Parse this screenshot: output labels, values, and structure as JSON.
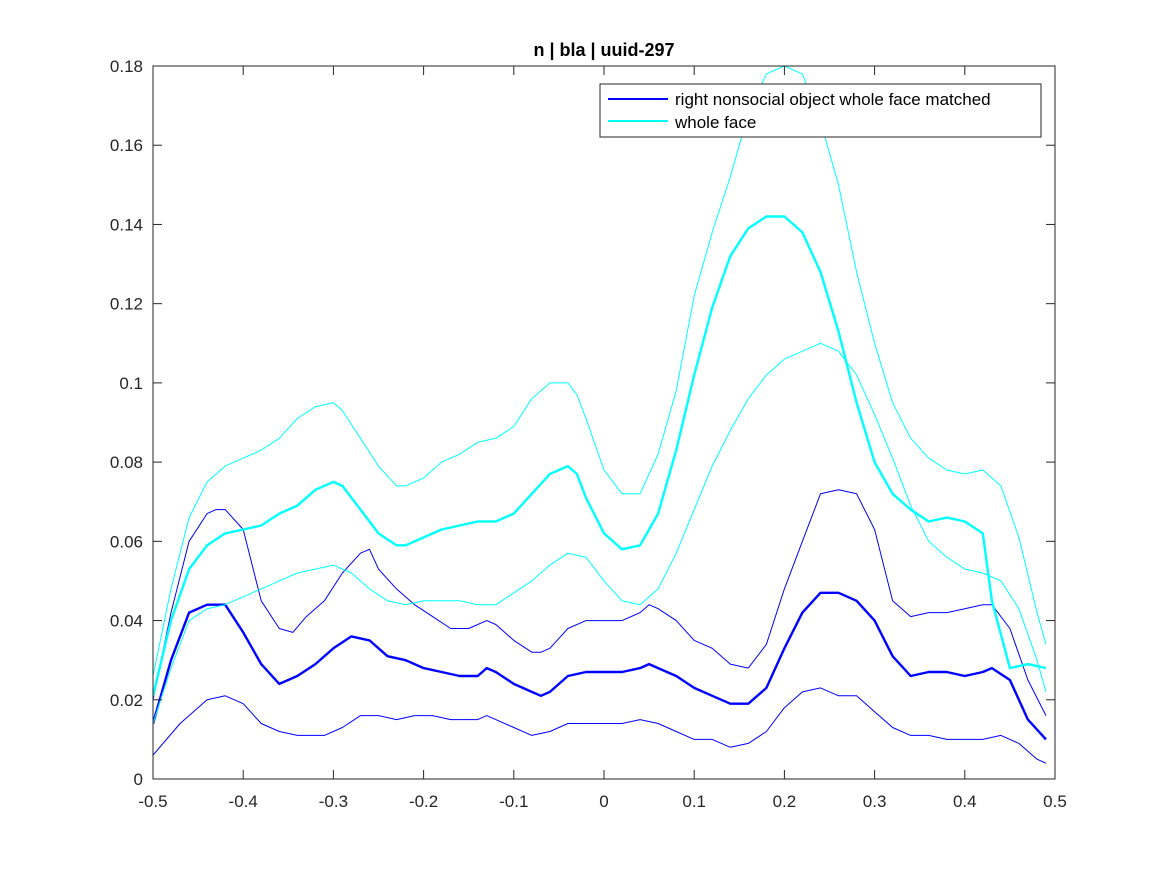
{
  "chart_data": {
    "type": "line",
    "title": "n | bla | uuid-297",
    "xlabel": "",
    "ylabel": "",
    "xlim": [
      -0.5,
      0.5
    ],
    "ylim": [
      0,
      0.18
    ],
    "xticks": [
      -0.5,
      -0.4,
      -0.3,
      -0.2,
      -0.1,
      0,
      0.1,
      0.2,
      0.3,
      0.4,
      0.5
    ],
    "xtick_labels": [
      "-0.5",
      "-0.4",
      "-0.3",
      "-0.2",
      "-0.1",
      "0",
      "0.1",
      "0.2",
      "0.3",
      "0.4",
      "0.5"
    ],
    "yticks": [
      0,
      0.02,
      0.04,
      0.06,
      0.08,
      0.1,
      0.12,
      0.14,
      0.16,
      0.18
    ],
    "ytick_labels": [
      "0",
      "0.02",
      "0.04",
      "0.06",
      "0.08",
      "0.1",
      "0.12",
      "0.14",
      "0.16",
      "0.18"
    ],
    "grid": false,
    "legend_position": "top-right",
    "series": [
      {
        "name": "right nonsocial object whole face matched",
        "color": "#0000ff",
        "role": "mean",
        "x": [
          -0.5,
          -0.48,
          -0.46,
          -0.44,
          -0.42,
          -0.4,
          -0.38,
          -0.36,
          -0.34,
          -0.32,
          -0.3,
          -0.28,
          -0.26,
          -0.24,
          -0.22,
          -0.2,
          -0.18,
          -0.16,
          -0.14,
          -0.13,
          -0.12,
          -0.1,
          -0.08,
          -0.07,
          -0.06,
          -0.04,
          -0.02,
          0,
          0.02,
          0.04,
          0.05,
          0.06,
          0.08,
          0.1,
          0.12,
          0.14,
          0.16,
          0.18,
          0.2,
          0.22,
          0.24,
          0.26,
          0.28,
          0.3,
          0.32,
          0.34,
          0.36,
          0.38,
          0.4,
          0.42,
          0.43,
          0.45,
          0.47,
          0.49
        ],
        "y": [
          0.014,
          0.03,
          0.042,
          0.044,
          0.044,
          0.037,
          0.029,
          0.024,
          0.026,
          0.029,
          0.033,
          0.036,
          0.035,
          0.031,
          0.03,
          0.028,
          0.027,
          0.026,
          0.026,
          0.028,
          0.027,
          0.024,
          0.022,
          0.021,
          0.022,
          0.026,
          0.027,
          0.027,
          0.027,
          0.028,
          0.029,
          0.028,
          0.026,
          0.023,
          0.021,
          0.019,
          0.019,
          0.023,
          0.033,
          0.042,
          0.047,
          0.047,
          0.045,
          0.04,
          0.031,
          0.026,
          0.027,
          0.027,
          0.026,
          0.027,
          0.028,
          0.025,
          0.015,
          0.01
        ]
      },
      {
        "name": "",
        "color": "#0000ff",
        "role": "upper",
        "x": [
          -0.5,
          -0.48,
          -0.46,
          -0.44,
          -0.43,
          -0.42,
          -0.4,
          -0.38,
          -0.36,
          -0.345,
          -0.33,
          -0.31,
          -0.29,
          -0.27,
          -0.26,
          -0.25,
          -0.23,
          -0.21,
          -0.19,
          -0.17,
          -0.15,
          -0.13,
          -0.12,
          -0.1,
          -0.08,
          -0.07,
          -0.06,
          -0.04,
          -0.02,
          0,
          0.02,
          0.04,
          0.05,
          0.06,
          0.08,
          0.1,
          0.12,
          0.14,
          0.16,
          0.18,
          0.2,
          0.22,
          0.24,
          0.26,
          0.28,
          0.3,
          0.32,
          0.34,
          0.36,
          0.38,
          0.4,
          0.42,
          0.43,
          0.45,
          0.47,
          0.49
        ],
        "y": [
          0.02,
          0.042,
          0.06,
          0.067,
          0.068,
          0.068,
          0.063,
          0.045,
          0.038,
          0.037,
          0.041,
          0.045,
          0.052,
          0.057,
          0.058,
          0.053,
          0.048,
          0.044,
          0.041,
          0.038,
          0.038,
          0.04,
          0.039,
          0.035,
          0.032,
          0.032,
          0.033,
          0.038,
          0.04,
          0.04,
          0.04,
          0.042,
          0.044,
          0.043,
          0.04,
          0.035,
          0.033,
          0.029,
          0.028,
          0.034,
          0.048,
          0.06,
          0.072,
          0.073,
          0.072,
          0.063,
          0.045,
          0.041,
          0.042,
          0.042,
          0.043,
          0.044,
          0.044,
          0.038,
          0.025,
          0.016
        ]
      },
      {
        "name": "",
        "color": "#0000ff",
        "role": "lower",
        "x": [
          -0.5,
          -0.47,
          -0.44,
          -0.42,
          -0.4,
          -0.38,
          -0.36,
          -0.34,
          -0.31,
          -0.29,
          -0.27,
          -0.25,
          -0.23,
          -0.21,
          -0.19,
          -0.17,
          -0.14,
          -0.13,
          -0.12,
          -0.1,
          -0.08,
          -0.06,
          -0.04,
          -0.02,
          0,
          0.02,
          0.04,
          0.06,
          0.08,
          0.1,
          0.12,
          0.14,
          0.16,
          0.18,
          0.2,
          0.22,
          0.24,
          0.26,
          0.28,
          0.3,
          0.32,
          0.34,
          0.36,
          0.38,
          0.4,
          0.42,
          0.44,
          0.46,
          0.48,
          0.49
        ],
        "y": [
          0.006,
          0.014,
          0.02,
          0.021,
          0.019,
          0.014,
          0.012,
          0.011,
          0.011,
          0.013,
          0.016,
          0.016,
          0.015,
          0.016,
          0.016,
          0.015,
          0.015,
          0.016,
          0.015,
          0.013,
          0.011,
          0.012,
          0.014,
          0.014,
          0.014,
          0.014,
          0.015,
          0.014,
          0.012,
          0.01,
          0.01,
          0.008,
          0.009,
          0.012,
          0.018,
          0.022,
          0.023,
          0.021,
          0.021,
          0.017,
          0.013,
          0.011,
          0.011,
          0.01,
          0.01,
          0.01,
          0.011,
          0.009,
          0.005,
          0.004
        ]
      },
      {
        "name": "whole face",
        "color": "#00ffff",
        "role": "mean",
        "x": [
          -0.5,
          -0.48,
          -0.46,
          -0.44,
          -0.42,
          -0.4,
          -0.38,
          -0.36,
          -0.34,
          -0.32,
          -0.3,
          -0.29,
          -0.27,
          -0.25,
          -0.23,
          -0.22,
          -0.2,
          -0.18,
          -0.16,
          -0.14,
          -0.12,
          -0.1,
          -0.08,
          -0.06,
          -0.04,
          -0.03,
          -0.02,
          0,
          0.02,
          0.04,
          0.06,
          0.08,
          0.1,
          0.12,
          0.14,
          0.16,
          0.18,
          0.2,
          0.22,
          0.24,
          0.26,
          0.28,
          0.3,
          0.32,
          0.34,
          0.36,
          0.38,
          0.4,
          0.42,
          0.43,
          0.45,
          0.47,
          0.49
        ],
        "y": [
          0.021,
          0.04,
          0.053,
          0.059,
          0.062,
          0.063,
          0.064,
          0.067,
          0.069,
          0.073,
          0.075,
          0.074,
          0.068,
          0.062,
          0.059,
          0.059,
          0.061,
          0.063,
          0.064,
          0.065,
          0.065,
          0.067,
          0.072,
          0.077,
          0.079,
          0.077,
          0.071,
          0.062,
          0.058,
          0.059,
          0.067,
          0.083,
          0.102,
          0.119,
          0.132,
          0.139,
          0.142,
          0.142,
          0.138,
          0.128,
          0.113,
          0.095,
          0.08,
          0.072,
          0.068,
          0.065,
          0.066,
          0.065,
          0.062,
          0.045,
          0.028,
          0.029,
          0.028
        ]
      },
      {
        "name": "",
        "color": "#00ffff",
        "role": "upper",
        "x": [
          -0.5,
          -0.48,
          -0.46,
          -0.44,
          -0.42,
          -0.4,
          -0.38,
          -0.36,
          -0.34,
          -0.32,
          -0.3,
          -0.29,
          -0.27,
          -0.25,
          -0.23,
          -0.22,
          -0.2,
          -0.18,
          -0.16,
          -0.14,
          -0.12,
          -0.1,
          -0.08,
          -0.06,
          -0.04,
          -0.03,
          -0.02,
          0,
          0.02,
          0.04,
          0.06,
          0.08,
          0.1,
          0.12,
          0.14,
          0.16,
          0.18,
          0.2,
          0.22,
          0.24,
          0.26,
          0.28,
          0.3,
          0.32,
          0.34,
          0.36,
          0.38,
          0.4,
          0.42,
          0.44,
          0.46,
          0.48,
          0.49
        ],
        "y": [
          0.026,
          0.048,
          0.066,
          0.075,
          0.079,
          0.081,
          0.083,
          0.086,
          0.091,
          0.094,
          0.095,
          0.093,
          0.086,
          0.079,
          0.074,
          0.074,
          0.076,
          0.08,
          0.082,
          0.085,
          0.086,
          0.089,
          0.096,
          0.1,
          0.1,
          0.097,
          0.091,
          0.078,
          0.072,
          0.072,
          0.082,
          0.098,
          0.122,
          0.138,
          0.152,
          0.168,
          0.178,
          0.18,
          0.178,
          0.166,
          0.15,
          0.128,
          0.11,
          0.095,
          0.086,
          0.081,
          0.078,
          0.077,
          0.078,
          0.074,
          0.061,
          0.042,
          0.034
        ]
      },
      {
        "name": "",
        "color": "#00ffff",
        "role": "lower",
        "x": [
          -0.5,
          -0.48,
          -0.46,
          -0.44,
          -0.42,
          -0.4,
          -0.38,
          -0.36,
          -0.34,
          -0.32,
          -0.3,
          -0.28,
          -0.26,
          -0.24,
          -0.22,
          -0.2,
          -0.18,
          -0.16,
          -0.14,
          -0.12,
          -0.1,
          -0.08,
          -0.06,
          -0.04,
          -0.02,
          0,
          0.02,
          0.04,
          0.06,
          0.08,
          0.1,
          0.12,
          0.14,
          0.16,
          0.18,
          0.2,
          0.22,
          0.24,
          0.26,
          0.28,
          0.3,
          0.32,
          0.34,
          0.36,
          0.38,
          0.4,
          0.42,
          0.44,
          0.46,
          0.48,
          0.49
        ],
        "y": [
          0.014,
          0.028,
          0.04,
          0.043,
          0.044,
          0.046,
          0.048,
          0.05,
          0.052,
          0.053,
          0.054,
          0.052,
          0.048,
          0.045,
          0.044,
          0.045,
          0.045,
          0.045,
          0.044,
          0.044,
          0.047,
          0.05,
          0.054,
          0.057,
          0.056,
          0.05,
          0.045,
          0.044,
          0.048,
          0.057,
          0.068,
          0.079,
          0.088,
          0.096,
          0.102,
          0.106,
          0.108,
          0.11,
          0.108,
          0.102,
          0.092,
          0.081,
          0.069,
          0.06,
          0.056,
          0.053,
          0.052,
          0.05,
          0.043,
          0.03,
          0.022
        ]
      }
    ]
  }
}
